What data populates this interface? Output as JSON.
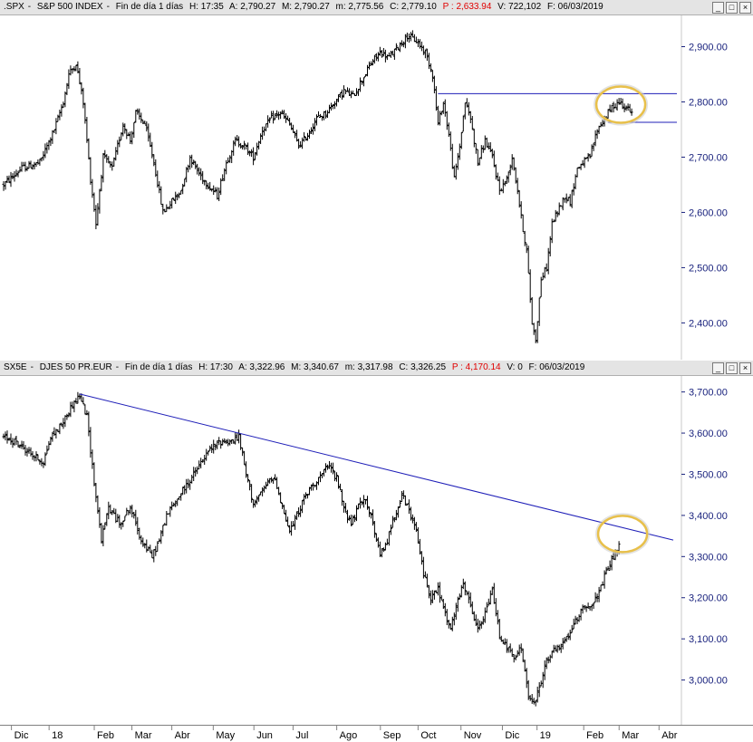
{
  "chart_data": [
    {
      "type": "ohlc",
      "header": {
        "symbol": ".SPX",
        "name": "S&P 500 INDEX",
        "period": "Fin de día 1 días",
        "time": "H: 17:35",
        "open": "A: 2,790.27",
        "high": "M: 2,790.27",
        "low": "m: 2,775.56",
        "close": "C: 2,779.10",
        "p": "P : 2,633.94",
        "volume": "V: 722,102",
        "date": "F: 06/03/2019"
      },
      "ylim": [
        2340,
        2950
      ],
      "yticks": [
        "2,900.00",
        "2,800.00",
        "2,700.00",
        "2,600.00",
        "2,500.00",
        "2,400.00"
      ],
      "ytick_values": [
        2900,
        2800,
        2700,
        2600,
        2500,
        2400
      ],
      "anchors": [
        [
          0,
          2650
        ],
        [
          10,
          2680
        ],
        [
          20,
          2690
        ],
        [
          28,
          2750
        ],
        [
          33,
          2800
        ],
        [
          36,
          2850
        ],
        [
          40,
          2870
        ],
        [
          44,
          2800
        ],
        [
          48,
          2660
        ],
        [
          51,
          2580
        ],
        [
          55,
          2700
        ],
        [
          60,
          2680
        ],
        [
          66,
          2760
        ],
        [
          70,
          2730
        ],
        [
          73,
          2780
        ],
        [
          78,
          2760
        ],
        [
          83,
          2690
        ],
        [
          88,
          2600
        ],
        [
          93,
          2620
        ],
        [
          98,
          2640
        ],
        [
          103,
          2700
        ],
        [
          108,
          2670
        ],
        [
          113,
          2650
        ],
        [
          118,
          2630
        ],
        [
          123,
          2690
        ],
        [
          128,
          2730
        ],
        [
          133,
          2720
        ],
        [
          138,
          2700
        ],
        [
          143,
          2750
        ],
        [
          148,
          2770
        ],
        [
          153,
          2780
        ],
        [
          158,
          2760
        ],
        [
          163,
          2720
        ],
        [
          168,
          2740
        ],
        [
          173,
          2770
        ],
        [
          178,
          2780
        ],
        [
          183,
          2800
        ],
        [
          188,
          2820
        ],
        [
          193,
          2810
        ],
        [
          198,
          2840
        ],
        [
          203,
          2870
        ],
        [
          208,
          2890
        ],
        [
          213,
          2880
        ],
        [
          218,
          2900
        ],
        [
          223,
          2920
        ],
        [
          228,
          2910
        ],
        [
          233,
          2890
        ],
        [
          237,
          2850
        ],
        [
          240,
          2760
        ],
        [
          243,
          2800
        ],
        [
          246,
          2740
        ],
        [
          249,
          2660
        ],
        [
          252,
          2720
        ],
        [
          255,
          2800
        ],
        [
          258,
          2770
        ],
        [
          262,
          2690
        ],
        [
          266,
          2730
        ],
        [
          270,
          2700
        ],
        [
          274,
          2640
        ],
        [
          278,
          2660
        ],
        [
          281,
          2700
        ],
        [
          284,
          2640
        ],
        [
          286,
          2590
        ],
        [
          289,
          2530
        ],
        [
          292,
          2400
        ],
        [
          294,
          2370
        ],
        [
          297,
          2480
        ],
        [
          300,
          2500
        ],
        [
          303,
          2580
        ],
        [
          306,
          2600
        ],
        [
          310,
          2630
        ],
        [
          313,
          2620
        ],
        [
          317,
          2680
        ],
        [
          320,
          2690
        ],
        [
          324,
          2700
        ],
        [
          328,
          2750
        ],
        [
          332,
          2770
        ],
        [
          336,
          2790
        ],
        [
          340,
          2800
        ],
        [
          344,
          2790
        ],
        [
          347,
          2779
        ]
      ],
      "lines": [
        {
          "x1": 240,
          "x2": 372,
          "y1": 2815,
          "y2": 2815
        },
        {
          "x1": 334,
          "x2": 372,
          "y1": 2763,
          "y2": 2763
        }
      ],
      "circle": {
        "x": 341,
        "y": 2795
      }
    },
    {
      "type": "ohlc",
      "header": {
        "symbol": "SX5E",
        "name": "DJES 50 PR.EUR",
        "period": "Fin de día 1 días",
        "time": "H: 17:30",
        "open": "A: 3,322.96",
        "high": "M: 3,340.67",
        "low": "m: 3,317.98",
        "close": "C: 3,326.25",
        "p": "P : 4,170.14",
        "volume": "V: 0",
        "date": "F: 06/03/2019"
      },
      "ylim": [
        2900,
        3730
      ],
      "yticks": [
        "3,700.00",
        "3,600.00",
        "3,500.00",
        "3,400.00",
        "3,300.00",
        "3,200.00",
        "3,100.00",
        "3,000.00"
      ],
      "ytick_values": [
        3700,
        3600,
        3500,
        3400,
        3300,
        3200,
        3100,
        3000
      ],
      "anchors": [
        [
          0,
          3590
        ],
        [
          6,
          3580
        ],
        [
          12,
          3560
        ],
        [
          18,
          3540
        ],
        [
          22,
          3530
        ],
        [
          26,
          3590
        ],
        [
          32,
          3620
        ],
        [
          38,
          3670
        ],
        [
          42,
          3690
        ],
        [
          46,
          3640
        ],
        [
          50,
          3480
        ],
        [
          54,
          3340
        ],
        [
          58,
          3420
        ],
        [
          64,
          3380
        ],
        [
          70,
          3420
        ],
        [
          76,
          3340
        ],
        [
          82,
          3300
        ],
        [
          86,
          3340
        ],
        [
          90,
          3400
        ],
        [
          96,
          3440
        ],
        [
          102,
          3480
        ],
        [
          108,
          3520
        ],
        [
          114,
          3560
        ],
        [
          120,
          3580
        ],
        [
          126,
          3580
        ],
        [
          130,
          3590
        ],
        [
          134,
          3500
        ],
        [
          138,
          3430
        ],
        [
          142,
          3450
        ],
        [
          146,
          3480
        ],
        [
          150,
          3490
        ],
        [
          154,
          3420
        ],
        [
          158,
          3360
        ],
        [
          162,
          3400
        ],
        [
          166,
          3440
        ],
        [
          170,
          3470
        ],
        [
          176,
          3500
        ],
        [
          180,
          3520
        ],
        [
          184,
          3490
        ],
        [
          188,
          3420
        ],
        [
          192,
          3380
        ],
        [
          196,
          3420
        ],
        [
          200,
          3440
        ],
        [
          204,
          3380
        ],
        [
          208,
          3300
        ],
        [
          212,
          3340
        ],
        [
          216,
          3400
        ],
        [
          220,
          3450
        ],
        [
          224,
          3410
        ],
        [
          228,
          3360
        ],
        [
          232,
          3260
        ],
        [
          236,
          3200
        ],
        [
          240,
          3220
        ],
        [
          244,
          3160
        ],
        [
          247,
          3120
        ],
        [
          250,
          3180
        ],
        [
          254,
          3230
        ],
        [
          258,
          3180
        ],
        [
          262,
          3120
        ],
        [
          266,
          3160
        ],
        [
          270,
          3220
        ],
        [
          274,
          3110
        ],
        [
          278,
          3080
        ],
        [
          282,
          3050
        ],
        [
          286,
          3080
        ],
        [
          290,
          2960
        ],
        [
          293,
          2940
        ],
        [
          296,
          2980
        ],
        [
          300,
          3050
        ],
        [
          304,
          3070
        ],
        [
          308,
          3080
        ],
        [
          312,
          3110
        ],
        [
          316,
          3140
        ],
        [
          320,
          3180
        ],
        [
          324,
          3180
        ],
        [
          328,
          3200
        ],
        [
          332,
          3250
        ],
        [
          336,
          3290
        ],
        [
          340,
          3326
        ]
      ],
      "lines": [
        {
          "x1": 42,
          "x2": 370,
          "y1": 3695,
          "y2": 3340
        }
      ],
      "circle": {
        "x": 342,
        "y": 3355
      }
    }
  ],
  "x_axis": {
    "labels": [
      {
        "text": "Dic",
        "pos": 0.02
      },
      {
        "text": "18",
        "pos": 0.07
      },
      {
        "text": "Feb",
        "pos": 0.13
      },
      {
        "text": "Mar",
        "pos": 0.18
      },
      {
        "text": "Abr",
        "pos": 0.233
      },
      {
        "text": "May",
        "pos": 0.288
      },
      {
        "text": "Jun",
        "pos": 0.342
      },
      {
        "text": "Jul",
        "pos": 0.394
      },
      {
        "text": "Ago",
        "pos": 0.452
      },
      {
        "text": "Sep",
        "pos": 0.51
      },
      {
        "text": "Oct",
        "pos": 0.56
      },
      {
        "text": "Nov",
        "pos": 0.617
      },
      {
        "text": "Dic",
        "pos": 0.672
      },
      {
        "text": "19",
        "pos": 0.718
      },
      {
        "text": "Feb",
        "pos": 0.78
      },
      {
        "text": "Mar",
        "pos": 0.827
      },
      {
        "text": "Abr",
        "pos": 0.88
      }
    ]
  },
  "colors": {
    "bars": "#000000",
    "trendline": "#1f1fb8",
    "circle": "#e8c04a",
    "axis_labels": "#1a237e",
    "red_value": "#e00000"
  },
  "window_buttons": [
    "_",
    "□",
    "×"
  ]
}
